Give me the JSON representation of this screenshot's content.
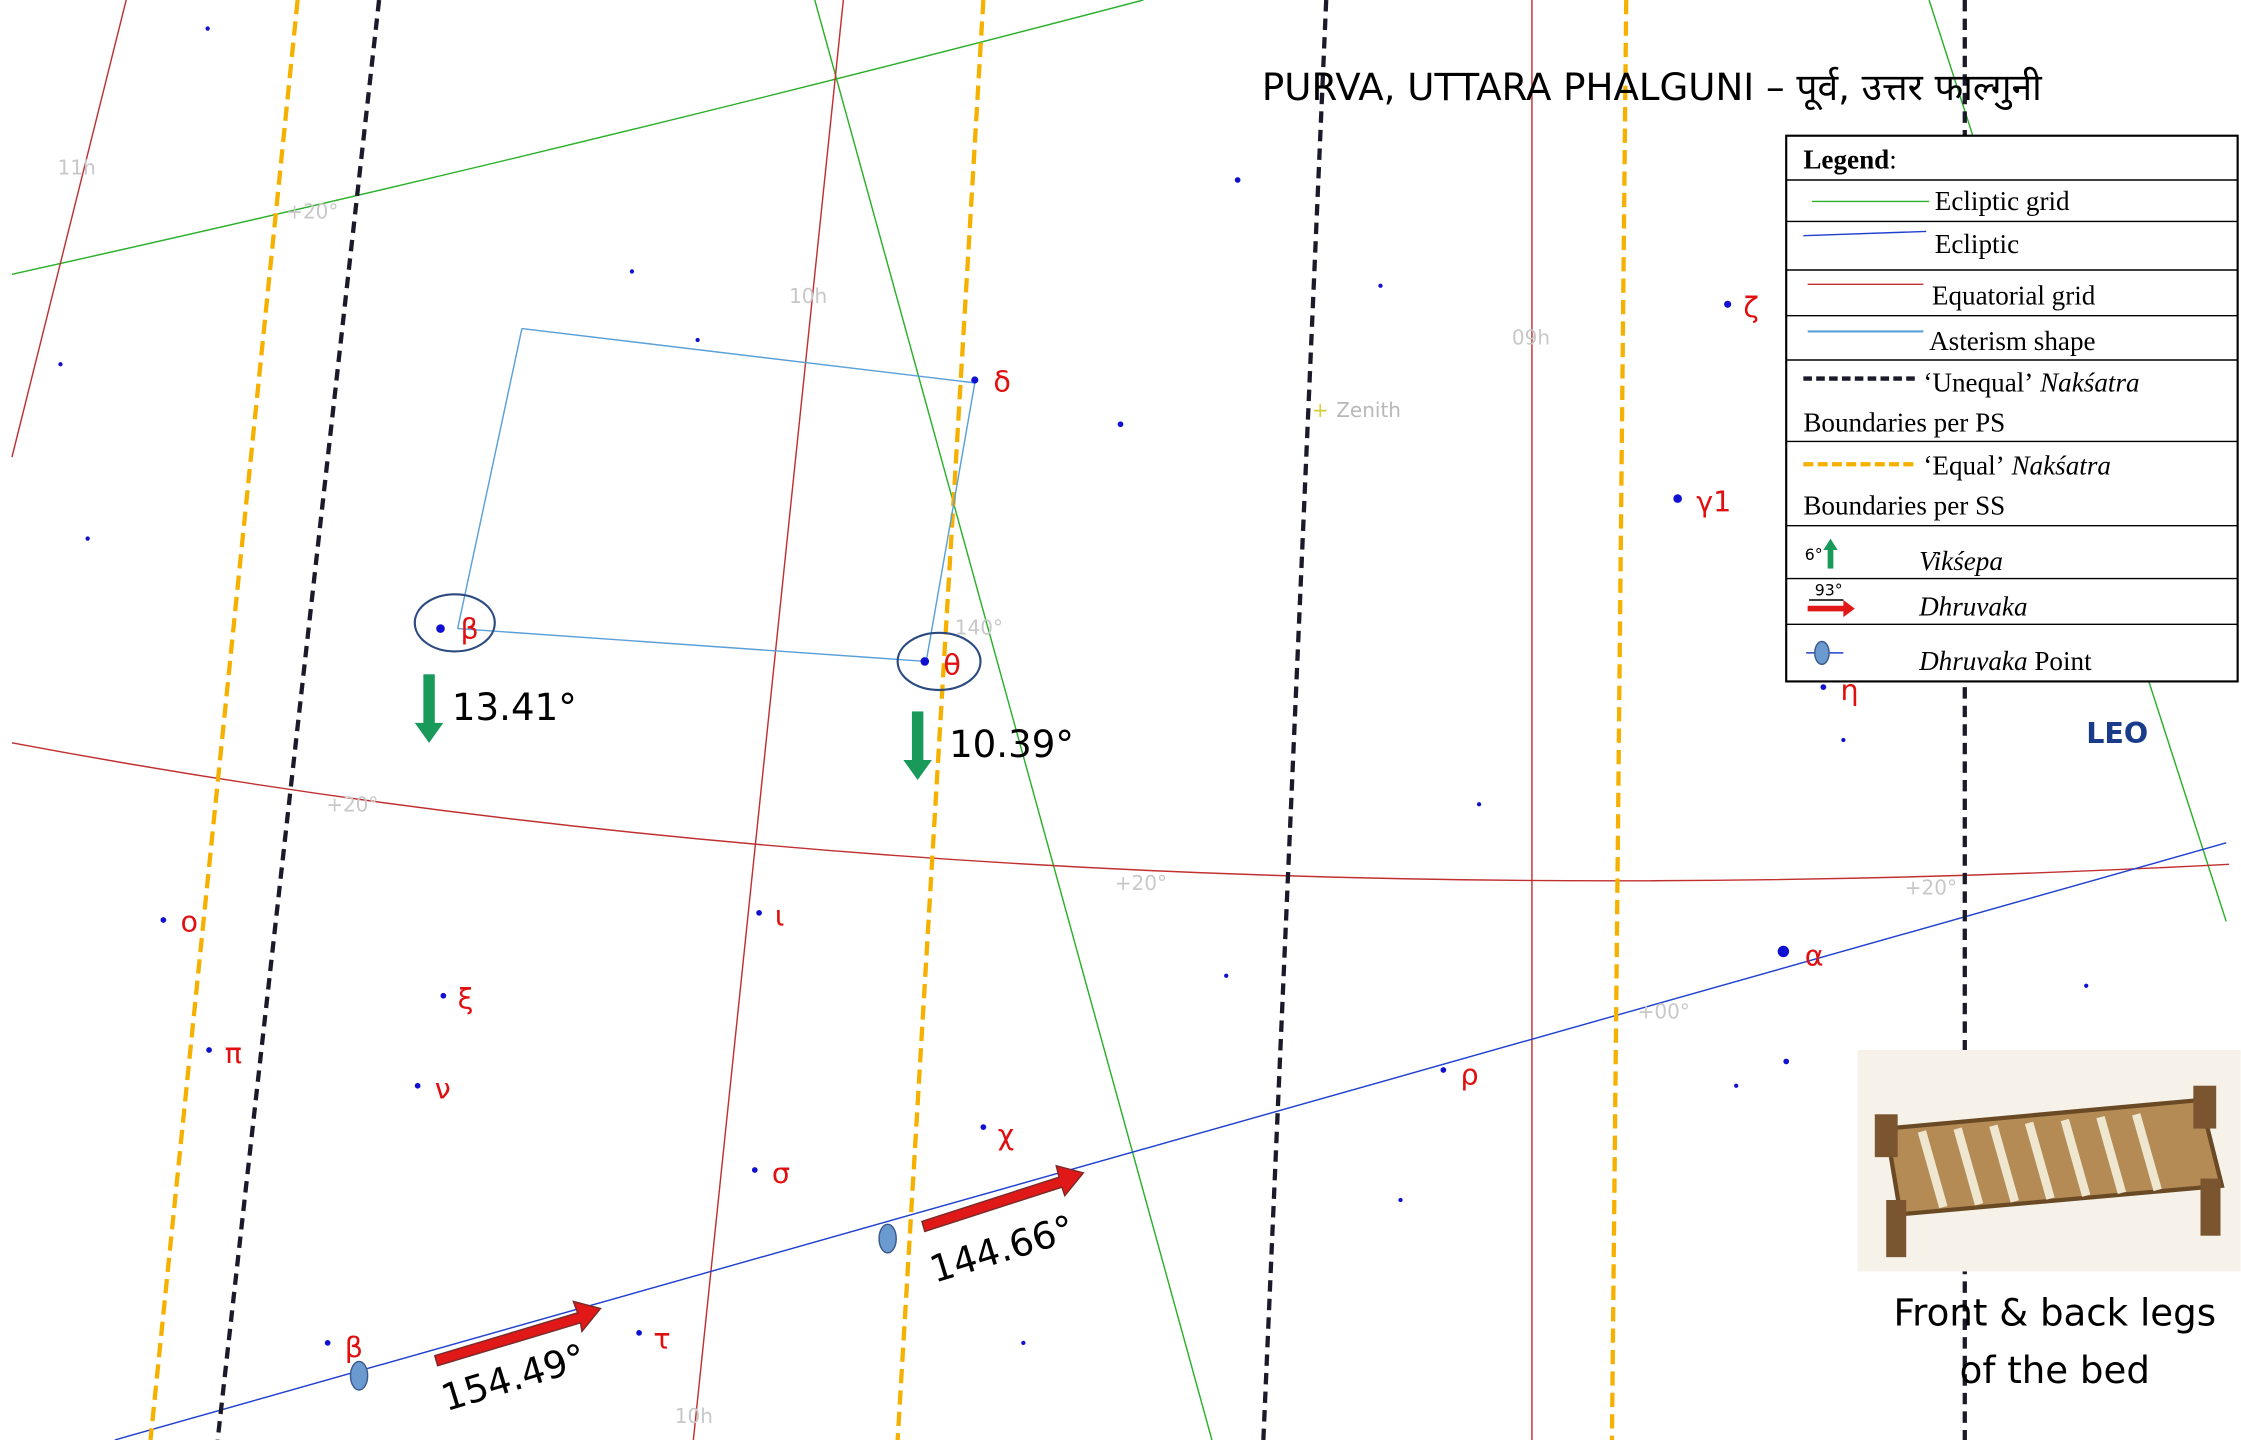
{
  "title": "PURVA, UTTARA PHALGUNI – पूर्व, उत्तर फाल्गुनी",
  "legend": {
    "heading": "Legend",
    "colon": ":",
    "items": [
      "Ecliptic grid",
      "Ecliptic",
      "Equatorial grid",
      "Asterism shape"
    ],
    "unequal": {
      "pre": "‘Unequal’",
      "italic": "Nakśatra",
      "post": "Boundaries per PS"
    },
    "equal": {
      "pre": "‘Equal’",
      "italic": "Nakśatra",
      "post": "Boundaries per SS"
    },
    "vikshepa": {
      "icon": "6°",
      "text": "Vikśepa"
    },
    "dhruvaka": {
      "icon": "93°",
      "text": "Dhruvaka"
    },
    "dhruvaka_point": {
      "italic": "Dhruvaka",
      "post": "Point"
    }
  },
  "grid_labels": [
    "11h",
    "+20°",
    "10h",
    "09h",
    "+20°",
    "+20°",
    "140°",
    "+20°",
    "+00°",
    "10h"
  ],
  "zenith": "Zenith",
  "stars": [
    "δ",
    "ζ",
    "γ1",
    "β",
    "θ",
    "η",
    "ο",
    "ι",
    "ξ",
    "π",
    "ν",
    "α",
    "ρ",
    "χ",
    "σ",
    "β",
    "τ"
  ],
  "vikshepa": [
    "13.41°",
    "10.39°"
  ],
  "dhruvaka": [
    "154.49°",
    "144.66°"
  ],
  "constellation": "LEO",
  "caption": [
    "Front & back legs",
    "of the bed"
  ]
}
